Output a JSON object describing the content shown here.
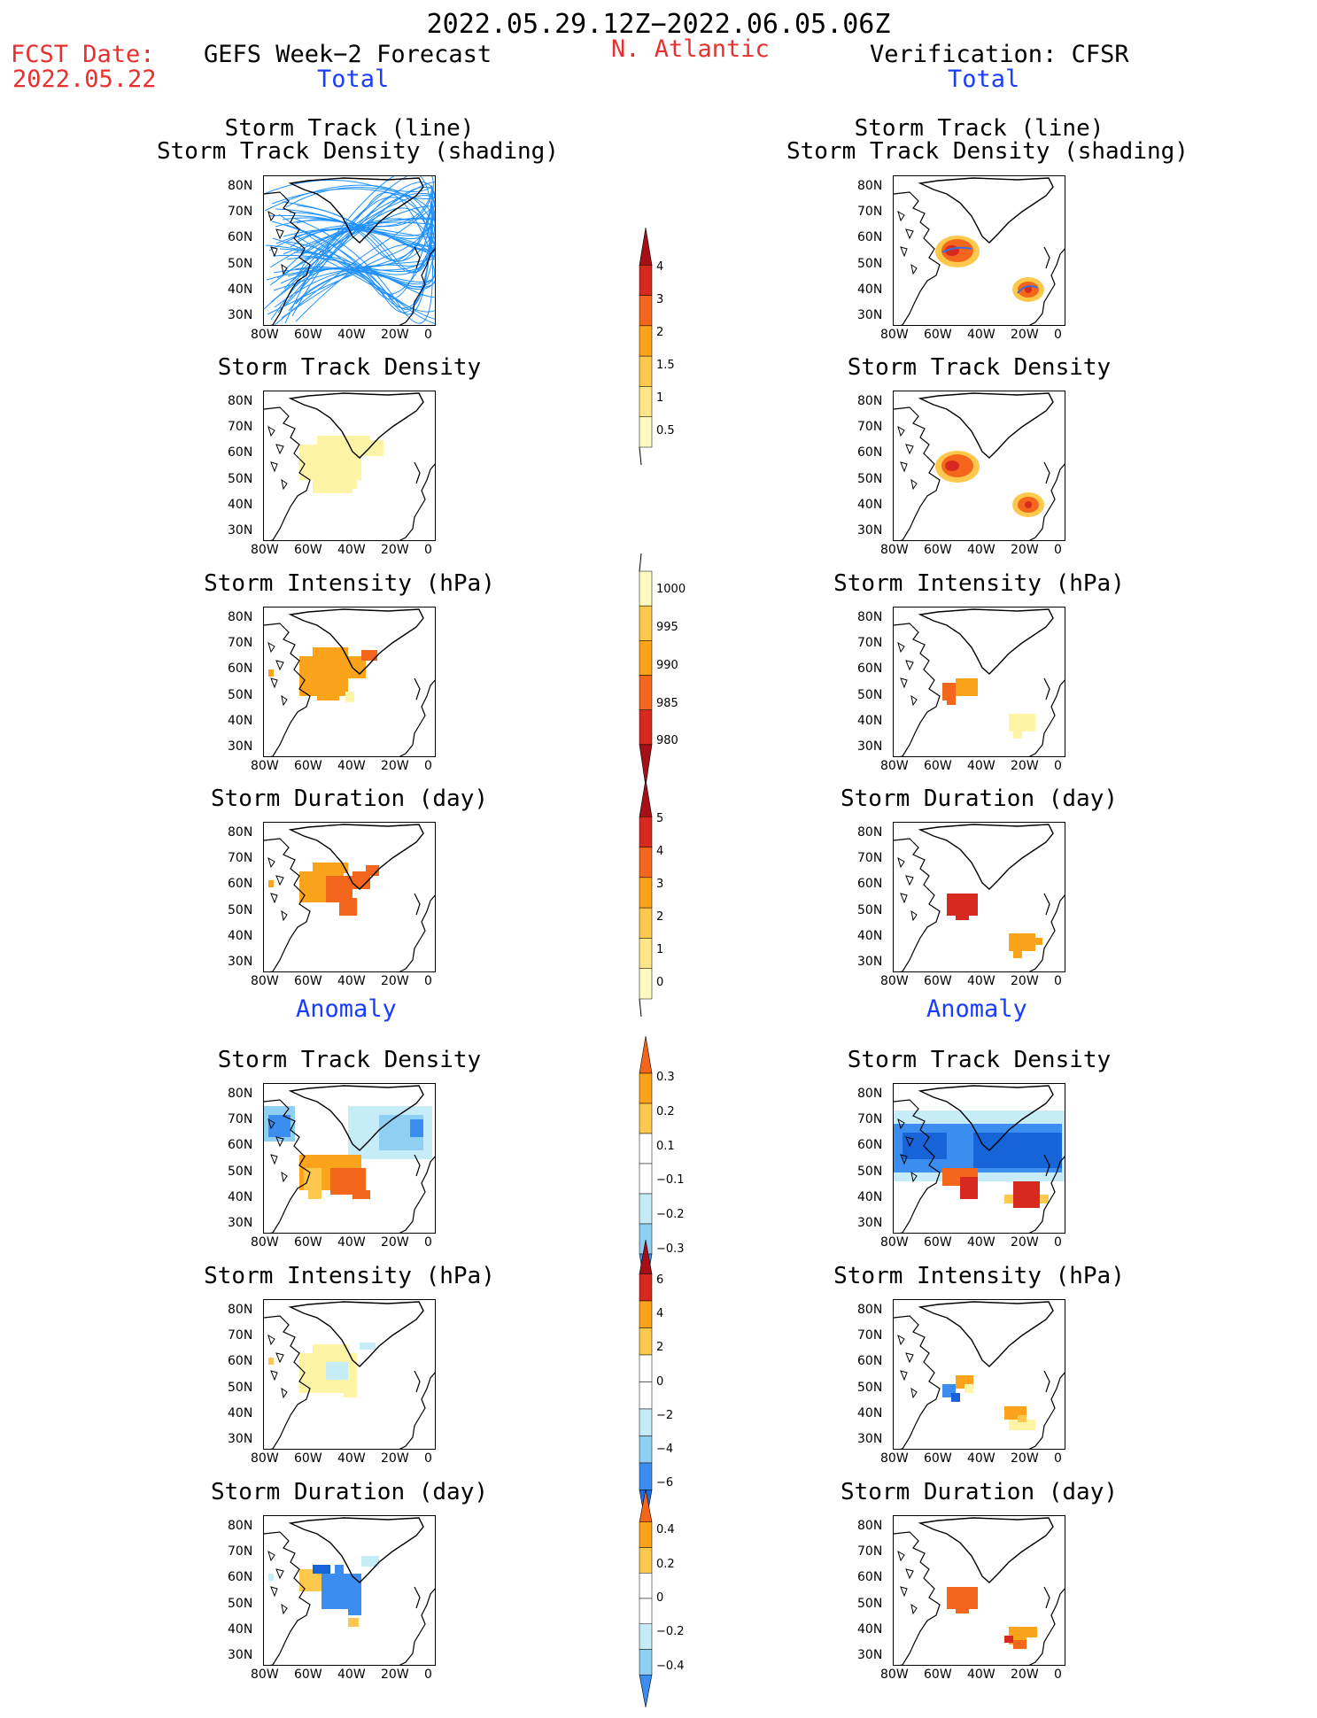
{
  "header": {
    "period": "2022.05.29.12Z−2022.06.05.06Z",
    "fcst_label": "FCST Date:",
    "fcst_date": "2022.05.22",
    "left_title": "GEFS Week−2 Forecast",
    "right_title": "Verification: CFSR",
    "region": "N. Atlantic",
    "total_label": "Total",
    "anomaly_label": "Anomaly"
  },
  "panel_titles": {
    "track_line": "Storm Track (line)",
    "track_shading": "Storm Track Density (shading)",
    "density": "Storm Track Density",
    "intensity": "Storm Intensity (hPa)",
    "duration": "Storm Duration (day)"
  },
  "axes": {
    "lat_ticks": [
      "80N",
      "70N",
      "60N",
      "50N",
      "40N",
      "30N"
    ],
    "lon_ticks": [
      "80W",
      "60W",
      "40W",
      "20W",
      "0"
    ]
  },
  "colorbars": {
    "total_density": [
      "4",
      "3",
      "2",
      "1.5",
      "1",
      "0.5"
    ],
    "total_intensity": [
      "1000",
      "995",
      "990",
      "985",
      "980"
    ],
    "total_duration": [
      "5",
      "4",
      "3",
      "2",
      "1",
      "0"
    ],
    "anom_density": [
      "0.3",
      "0.2",
      "0.1",
      "−0.1",
      "−0.2",
      "−0.3"
    ],
    "anom_intensity": [
      "6",
      "4",
      "2",
      "0",
      "−2",
      "−4",
      "−6"
    ],
    "anom_duration": [
      "0.4",
      "0.2",
      "0",
      "−0.2",
      "−0.4"
    ]
  },
  "colors": {
    "title_red": "#e83030",
    "label_blue": "#1a3cff",
    "track_line": "#1e90ff"
  }
}
